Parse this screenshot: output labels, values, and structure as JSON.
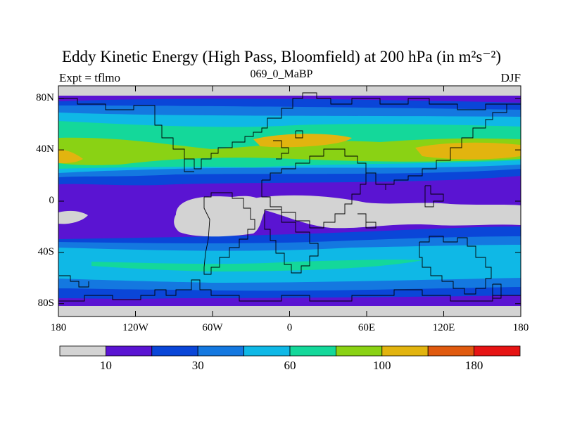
{
  "title": "Eddy Kinetic Energy (High Pass, Bloomfield) at 200 hPa (in m²s⁻²)",
  "subtitle": "069_0_MaBP",
  "left_label": "Expt = tflmo",
  "right_label": "DJF",
  "map": {
    "projection": "equirectangular",
    "lon_range": [
      -180,
      180
    ],
    "lat_range": [
      -90,
      90
    ],
    "lat_ticks": [
      {
        "value": 80,
        "label": "80N"
      },
      {
        "value": 40,
        "label": "40N"
      },
      {
        "value": 0,
        "label": "0"
      },
      {
        "value": -40,
        "label": "40S"
      },
      {
        "value": -80,
        "label": "80S"
      }
    ],
    "lon_ticks": [
      {
        "value": -180,
        "label": "180"
      },
      {
        "value": -120,
        "label": "120W"
      },
      {
        "value": -60,
        "label": "60W"
      },
      {
        "value": 0,
        "label": "0"
      },
      {
        "value": 60,
        "label": "60E"
      },
      {
        "value": 120,
        "label": "120E"
      },
      {
        "value": 180,
        "label": "180"
      }
    ]
  },
  "colorbar": {
    "colors": [
      "#d3d3d3",
      "#5a14d2",
      "#0a46d8",
      "#1478e0",
      "#0fb8e6",
      "#14d89a",
      "#8ad214",
      "#e2b40f",
      "#e05a0f",
      "#e61414"
    ],
    "labels": [
      {
        "after_box": 1,
        "text": "10"
      },
      {
        "after_box": 3,
        "text": "30"
      },
      {
        "after_box": 5,
        "text": "60"
      },
      {
        "after_box": 7,
        "text": "100"
      },
      {
        "after_box": 9,
        "text": "180"
      }
    ]
  }
}
